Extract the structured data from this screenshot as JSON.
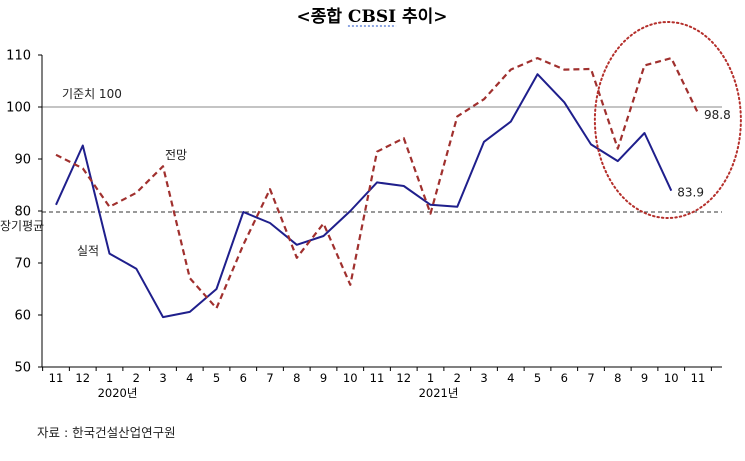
{
  "source_note": "자료 : 한국건설산업연구원",
  "chart_data": {
    "type": "line",
    "title": "<종합 CBSI 추이>",
    "title_underline_term": "CBSI",
    "categories": [
      "11",
      "12",
      "1",
      "2",
      "3",
      "4",
      "5",
      "6",
      "7",
      "8",
      "9",
      "10",
      "11",
      "12",
      "1",
      "2",
      "3",
      "4",
      "5",
      "6",
      "7",
      "8",
      "9",
      "10",
      "11"
    ],
    "year_labels": [
      {
        "text": "2020년",
        "category_index": 3
      },
      {
        "text": "2021년",
        "category_index": 15
      }
    ],
    "ylim": [
      50,
      110
    ],
    "yticks": [
      50,
      60,
      70,
      80,
      90,
      100,
      110
    ],
    "series": [
      {
        "name": "실적",
        "color": "#1f1f8c",
        "dashed": false,
        "values": [
          81.2,
          92.6,
          71.8,
          68.9,
          59.6,
          60.6,
          65.0,
          79.8,
          77.7,
          73.5,
          75.2,
          80.0,
          85.5,
          84.8,
          81.2,
          80.8,
          93.3,
          97.2,
          106.3,
          100.9,
          92.8,
          89.6,
          95.0,
          83.9,
          null
        ]
      },
      {
        "name": "전망",
        "color": "#a0302e",
        "dashed": true,
        "values": [
          90.8,
          88.2,
          80.8,
          83.5,
          88.6,
          67.1,
          61.3,
          73.5,
          84.2,
          71.0,
          77.6,
          65.8,
          91.4,
          94.0,
          79.5,
          98.2,
          101.5,
          107.2,
          109.4,
          107.2,
          107.3,
          92.0,
          108.0,
          109.4,
          98.8
        ]
      }
    ],
    "reference_lines": [
      {
        "label": "기준치 100",
        "value": 100,
        "style": "solid",
        "color": "#8a8a8a"
      },
      {
        "label": "장기평균",
        "value": 79.8,
        "style": "dashed",
        "color": "#333333"
      }
    ],
    "data_labels": [
      {
        "series": "실적",
        "category_index": 23,
        "text": "83.9"
      },
      {
        "series": "전망",
        "category_index": 24,
        "text": "98.8"
      }
    ],
    "highlight": {
      "shape": "dotted-circle",
      "color": "#b5302c",
      "from_index": 21,
      "to_index": 24
    },
    "grid": false
  }
}
